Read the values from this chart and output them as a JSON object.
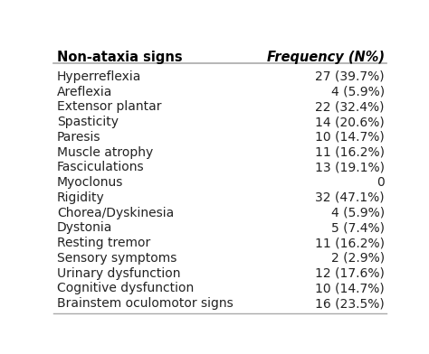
{
  "header_left": "Non-ataxia signs",
  "header_right": "Frequency (N%)",
  "rows": [
    [
      "Hyperreflexia",
      "27 (39.7%)"
    ],
    [
      "Areflexia",
      "4 (5.9%)"
    ],
    [
      "Extensor plantar",
      "22 (32.4%)"
    ],
    [
      "Spasticity",
      "14 (20.6%)"
    ],
    [
      "Paresis",
      "10 (14.7%)"
    ],
    [
      "Muscle atrophy",
      "11 (16.2%)"
    ],
    [
      "Fasciculations",
      "13 (19.1%)"
    ],
    [
      "Myoclonus",
      "0"
    ],
    [
      "Rigidity",
      "32 (47.1%)"
    ],
    [
      "Chorea/Dyskinesia",
      "4 (5.9%)"
    ],
    [
      "Dystonia",
      "5 (7.4%)"
    ],
    [
      "Resting tremor",
      "11 (16.2%)"
    ],
    [
      "Sensory symptoms",
      "2 (2.9%)"
    ],
    [
      "Urinary dysfunction",
      "12 (17.6%)"
    ],
    [
      "Cognitive dysfunction",
      "10 (14.7%)"
    ],
    [
      "Brainstem oculomotor signs",
      "16 (23.5%)"
    ]
  ],
  "bg_color": "#ffffff",
  "header_font_size": 10.5,
  "row_font_size": 10,
  "header_color": "#000000",
  "row_color": "#222222",
  "line_color": "#aaaaaa"
}
